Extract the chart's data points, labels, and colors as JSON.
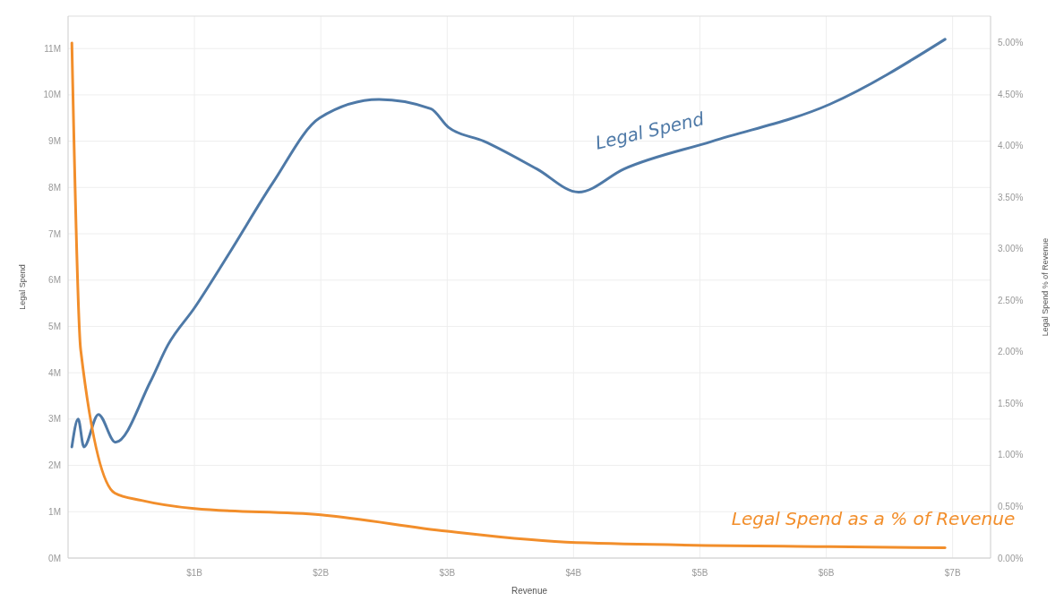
{
  "chart_data": {
    "type": "line",
    "xlabel": "Revenue",
    "ylabel": "Legal Spend",
    "y2label": "Legal Spend % of Revenue",
    "xlim": [
      0,
      7.3
    ],
    "xticks": [
      {
        "value": 1,
        "label": "$1B"
      },
      {
        "value": 2,
        "label": "$2B"
      },
      {
        "value": 3,
        "label": "$3B"
      },
      {
        "value": 4,
        "label": "$4B"
      },
      {
        "value": 5,
        "label": "$5B"
      },
      {
        "value": 6,
        "label": "$6B"
      },
      {
        "value": 7,
        "label": "$7B"
      }
    ],
    "ylim": [
      0,
      11.7
    ],
    "yticks": [
      {
        "value": 0,
        "label": "0M"
      },
      {
        "value": 1,
        "label": "1M"
      },
      {
        "value": 2,
        "label": "2M"
      },
      {
        "value": 3,
        "label": "3M"
      },
      {
        "value": 4,
        "label": "4M"
      },
      {
        "value": 5,
        "label": "5M"
      },
      {
        "value": 6,
        "label": "6M"
      },
      {
        "value": 7,
        "label": "7M"
      },
      {
        "value": 8,
        "label": "8M"
      },
      {
        "value": 9,
        "label": "9M"
      },
      {
        "value": 10,
        "label": "10M"
      },
      {
        "value": 11,
        "label": "11M"
      }
    ],
    "y2lim": [
      0,
      5.26
    ],
    "y2ticks": [
      {
        "value": 0,
        "label": "0.00%"
      },
      {
        "value": 0.5,
        "label": "0.50%"
      },
      {
        "value": 1,
        "label": "1.00%"
      },
      {
        "value": 1.5,
        "label": "1.50%"
      },
      {
        "value": 2,
        "label": "2.00%"
      },
      {
        "value": 2.5,
        "label": "2.50%"
      },
      {
        "value": 3,
        "label": "3.00%"
      },
      {
        "value": 3.5,
        "label": "3.50%"
      },
      {
        "value": 4,
        "label": "4.00%"
      },
      {
        "value": 4.5,
        "label": "4.50%"
      },
      {
        "value": 5,
        "label": "5.00%"
      }
    ],
    "grid": true,
    "marker": "none",
    "line_style": "solid",
    "series": [
      {
        "name": "Legal Spend",
        "color": "#4e79a7",
        "x": [
          0.03,
          0.08,
          0.125,
          0.24,
          0.375,
          0.65,
          0.79,
          1.0,
          1.28,
          1.62,
          1.99,
          2.46,
          2.87,
          3.01,
          3.29,
          3.71,
          4.04,
          4.4,
          5.1,
          6.03,
          6.94
        ],
        "values": [
          2.4,
          3.0,
          2.4,
          3.1,
          2.5,
          3.8,
          4.6,
          5.4,
          6.6,
          8.1,
          9.5,
          9.9,
          9.7,
          9.3,
          9.0,
          8.4,
          7.9,
          8.4,
          9.0,
          9.8,
          11.2
        ]
      },
      {
        "name": "Legal Spend as a % of Revenue",
        "color": "#f28e2b",
        "axis": "y2",
        "x": [
          0.03,
          0.1,
          0.37,
          0.58,
          1.0,
          2.0,
          3.0,
          4.02,
          6.03,
          6.94
        ],
        "values": [
          5.0,
          2.02,
          0.63,
          0.56,
          0.48,
          0.42,
          0.26,
          0.15,
          0.11,
          0.1
        ]
      }
    ]
  }
}
